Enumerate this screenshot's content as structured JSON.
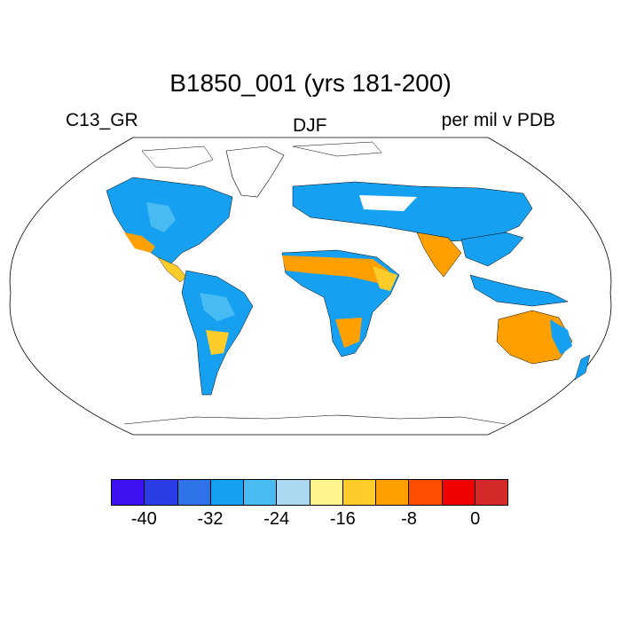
{
  "title": "B1850_001 (yrs 181-200)",
  "left_label": "C13_GR",
  "center_label": "DJF",
  "right_label": "per mil v PDB",
  "colorbar": {
    "colors": [
      "#3e10f2",
      "#2a3ee8",
      "#2e73ea",
      "#16a0f2",
      "#48bcf2",
      "#a9d8f0",
      "#fff58c",
      "#ffcc2a",
      "#ffa000",
      "#ff4e00",
      "#f10000",
      "#d42a2a"
    ],
    "tick_labels": [
      "-40",
      "-32",
      "-24",
      "-16",
      "-8",
      "0"
    ]
  }
}
